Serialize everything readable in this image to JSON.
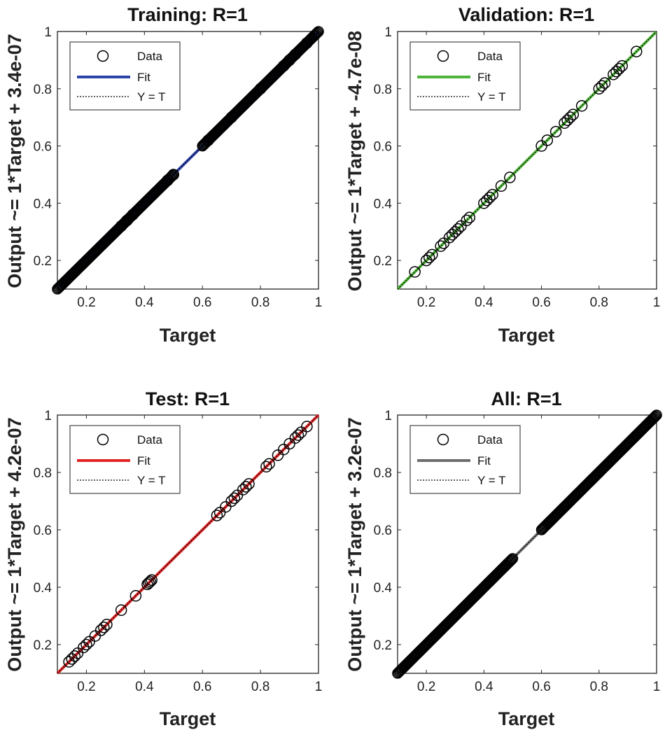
{
  "chart_data": [
    {
      "type": "scatter",
      "title": "Training: R=1",
      "xlabel": "Target",
      "ylabel": "Output ~= 1*Target + 3.4e-07",
      "xlim": [
        0.1,
        1.0
      ],
      "ylim": [
        0.1,
        1.0
      ],
      "xticks": [
        "0.2",
        "0.4",
        "0.6",
        "0.8",
        "1"
      ],
      "yticks": [
        "0.2",
        "0.4",
        "0.6",
        "0.8",
        "1"
      ],
      "fit_color": "#2e45a8",
      "legend": {
        "placement": "top-left",
        "entries": [
          "Data",
          "Fit",
          "Y = T"
        ]
      },
      "ranges": [
        [
          0.1,
          0.5
        ],
        [
          0.6,
          1.0
        ]
      ],
      "x": [
        0.32,
        0.34,
        0.36,
        0.48,
        0.5,
        0.62,
        0.7,
        0.8,
        0.88,
        0.9,
        0.92,
        0.96
      ],
      "y": [
        0.32,
        0.34,
        0.36,
        0.48,
        0.5,
        0.62,
        0.7,
        0.8,
        0.88,
        0.9,
        0.92,
        0.96
      ]
    },
    {
      "type": "scatter",
      "title": "Validation: R=1",
      "xlabel": "Target",
      "ylabel": "Output ~= 1*Target + -4.7e-08",
      "xlim": [
        0.1,
        1.0
      ],
      "ylim": [
        0.1,
        1.0
      ],
      "xticks": [
        "0.2",
        "0.4",
        "0.6",
        "0.8",
        "1"
      ],
      "yticks": [
        "0.2",
        "0.4",
        "0.6",
        "0.8",
        "1"
      ],
      "fit_color": "#4fb43a",
      "legend": {
        "placement": "top-left",
        "entries": [
          "Data",
          "Fit",
          "Y = T"
        ]
      },
      "ranges": [],
      "x": [
        0.16,
        0.2,
        0.21,
        0.22,
        0.25,
        0.26,
        0.28,
        0.29,
        0.3,
        0.31,
        0.32,
        0.34,
        0.35,
        0.4,
        0.41,
        0.42,
        0.43,
        0.46,
        0.49,
        0.6,
        0.62,
        0.65,
        0.68,
        0.69,
        0.7,
        0.71,
        0.74,
        0.8,
        0.81,
        0.82,
        0.85,
        0.86,
        0.87,
        0.88,
        0.93
      ],
      "y": [
        0.16,
        0.2,
        0.21,
        0.22,
        0.25,
        0.26,
        0.28,
        0.29,
        0.3,
        0.31,
        0.32,
        0.34,
        0.35,
        0.4,
        0.41,
        0.42,
        0.43,
        0.46,
        0.49,
        0.6,
        0.62,
        0.65,
        0.68,
        0.69,
        0.7,
        0.71,
        0.74,
        0.8,
        0.81,
        0.82,
        0.85,
        0.86,
        0.87,
        0.88,
        0.93
      ]
    },
    {
      "type": "scatter",
      "title": "Test: R=1",
      "xlabel": "Target",
      "ylabel": "Output ~= 1*Target + 4.2e-07",
      "xlim": [
        0.1,
        1.0
      ],
      "ylim": [
        0.1,
        1.0
      ],
      "xticks": [
        "0.2",
        "0.4",
        "0.6",
        "0.8",
        "1"
      ],
      "yticks": [
        "0.2",
        "0.4",
        "0.6",
        "0.8",
        "1"
      ],
      "fit_color": "#e02525",
      "legend": {
        "placement": "top-left",
        "entries": [
          "Data",
          "Fit",
          "Y = T"
        ]
      },
      "ranges": [],
      "x": [
        0.14,
        0.15,
        0.16,
        0.17,
        0.19,
        0.2,
        0.21,
        0.23,
        0.25,
        0.26,
        0.27,
        0.32,
        0.37,
        0.41,
        0.415,
        0.42,
        0.425,
        0.65,
        0.66,
        0.68,
        0.7,
        0.71,
        0.72,
        0.74,
        0.75,
        0.76,
        0.82,
        0.83,
        0.86,
        0.88,
        0.9,
        0.92,
        0.93,
        0.94,
        0.96
      ],
      "y": [
        0.14,
        0.15,
        0.16,
        0.17,
        0.19,
        0.2,
        0.21,
        0.23,
        0.25,
        0.26,
        0.27,
        0.32,
        0.37,
        0.41,
        0.415,
        0.42,
        0.425,
        0.65,
        0.66,
        0.68,
        0.7,
        0.71,
        0.72,
        0.74,
        0.75,
        0.76,
        0.82,
        0.83,
        0.86,
        0.88,
        0.9,
        0.92,
        0.93,
        0.94,
        0.96
      ]
    },
    {
      "type": "scatter",
      "title": "All: R=1",
      "xlabel": "Target",
      "ylabel": "Output ~= 1*Target + 3.2e-07",
      "xlim": [
        0.1,
        1.0
      ],
      "ylim": [
        0.1,
        1.0
      ],
      "xticks": [
        "0.2",
        "0.4",
        "0.6",
        "0.8",
        "1"
      ],
      "yticks": [
        "0.2",
        "0.4",
        "0.6",
        "0.8",
        "1"
      ],
      "fit_color": "#6e6e6e",
      "legend": {
        "placement": "top-left",
        "entries": [
          "Data",
          "Fit",
          "Y = T"
        ]
      },
      "ranges": [
        [
          0.1,
          0.5
        ],
        [
          0.6,
          1.0
        ]
      ],
      "x": [],
      "y": []
    }
  ]
}
